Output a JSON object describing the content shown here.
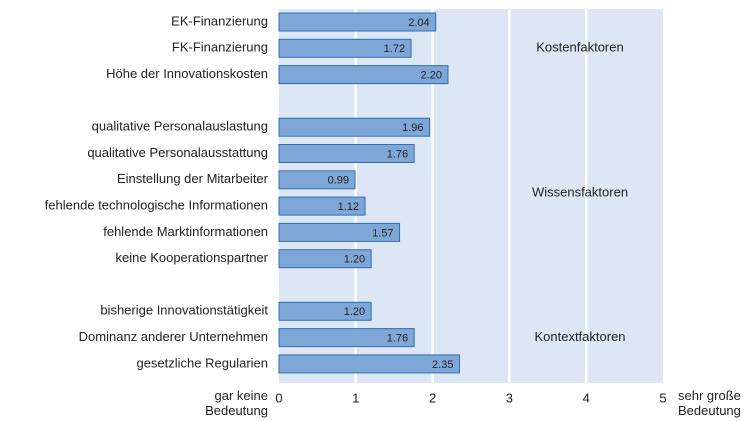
{
  "chart_data": {
    "type": "barh",
    "categories": [
      "EK-Finanzierung",
      "FK-Finanzierung",
      "Höhe der Innovationskosten",
      null,
      "qualitative Personalauslastung",
      "qualitative Personalausstattung",
      "Einstellung der Mitarbeiter",
      "fehlende technologische Informationen",
      "fehlende Marktinformationen",
      "keine Kooperationspartner",
      null,
      "bisherige Innovationstätigkeit",
      "Dominanz anderer Unternehmen",
      "gesetzliche Regularien"
    ],
    "values": [
      2.04,
      1.72,
      2.2,
      null,
      1.96,
      1.76,
      0.99,
      1.12,
      1.57,
      1.2,
      null,
      1.2,
      1.76,
      2.35
    ],
    "value_labels": [
      "2.04",
      "1.72",
      "2.20",
      null,
      "1.96",
      "1.76",
      "0.99",
      "1.12",
      "1.57",
      "1.20",
      null,
      "1.20",
      "1.76",
      "2.35"
    ],
    "color": "#7ea7d8",
    "annotations": [
      "Kostenfaktoren",
      "Wissensfaktoren",
      "Kontextfaktoren"
    ],
    "xlabel_left": "gar keine Bedeutung",
    "xlabel_right": "sehr große Bedeutung",
    "xlim": [
      0,
      5
    ],
    "xticks": [
      0,
      1,
      2,
      3,
      4,
      5
    ],
    "grid": true
  }
}
